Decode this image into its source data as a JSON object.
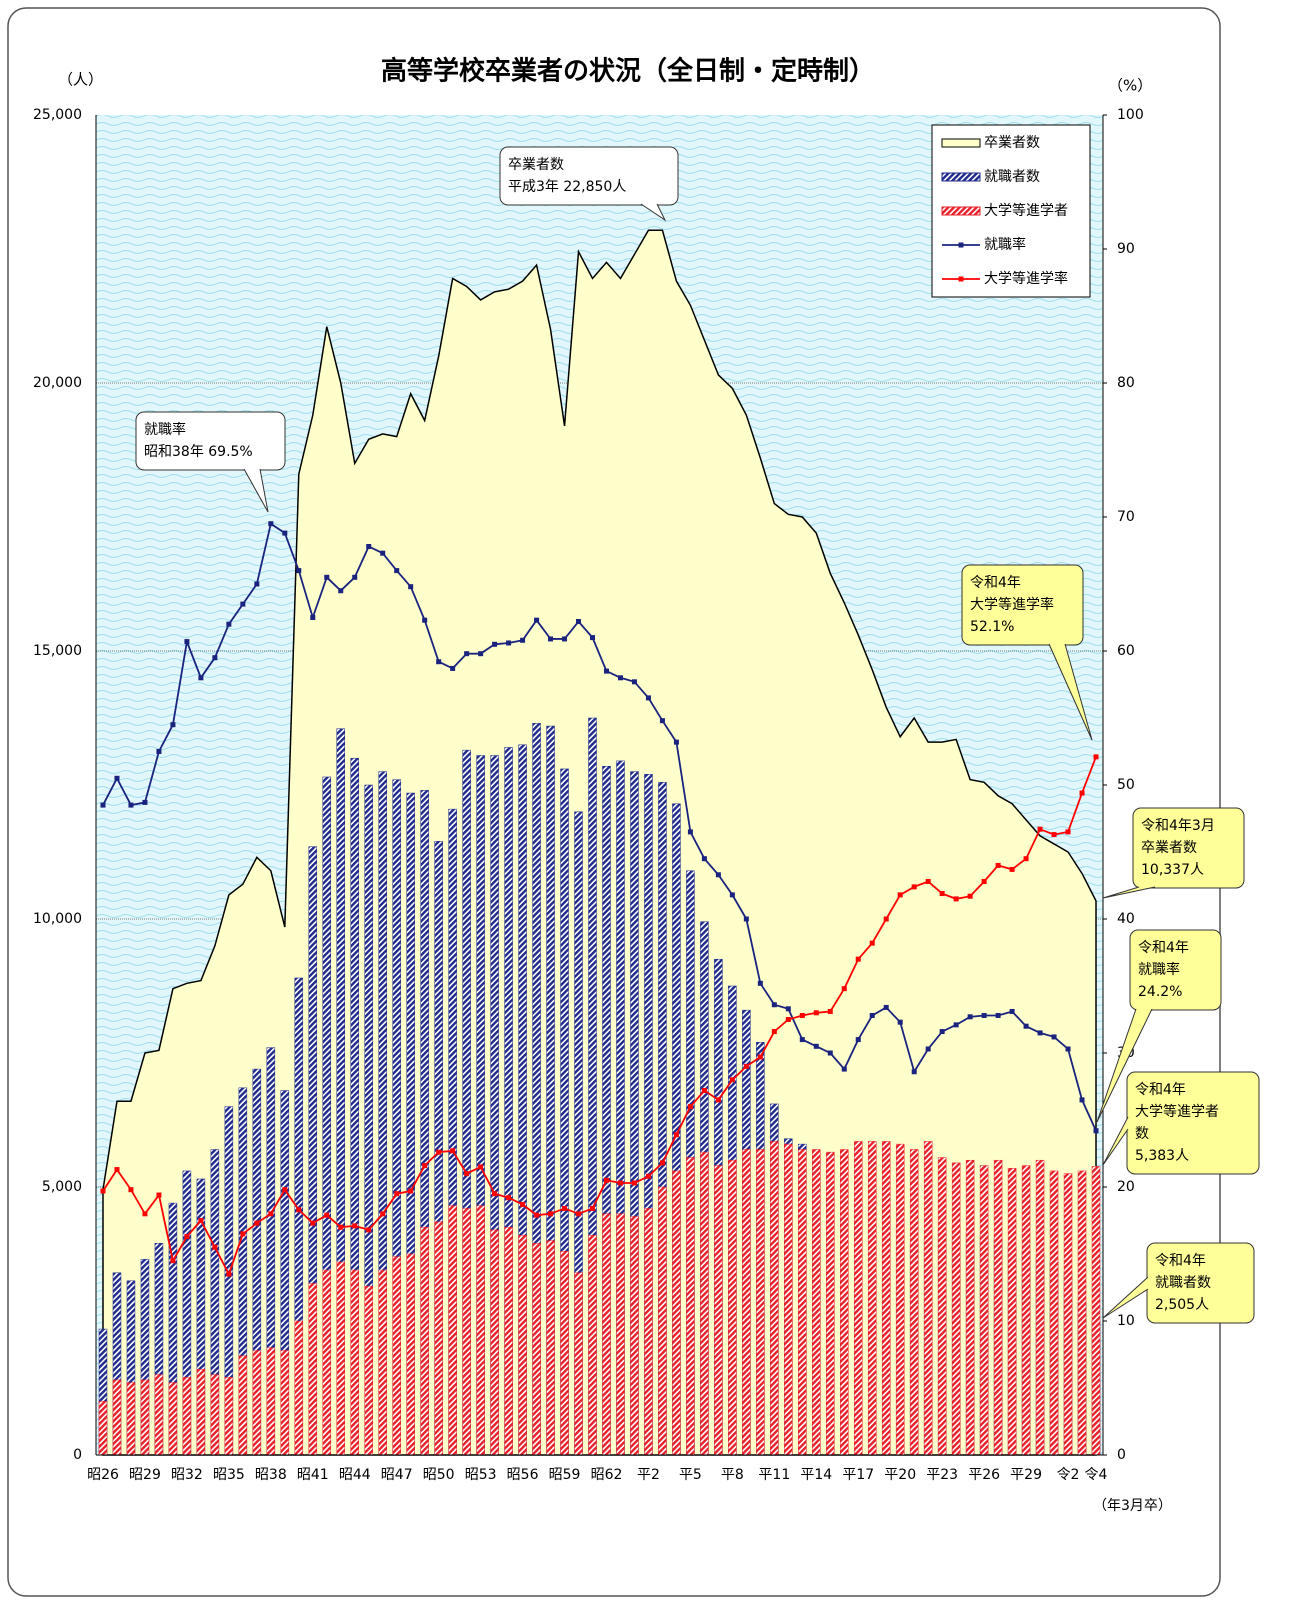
{
  "chart_data": {
    "type": "combo",
    "title": "高等学校卒業者の状況（全日制・定時制）",
    "y_unit": "（人）",
    "y2_unit": "（%）",
    "x_unit": "（年3月卒）",
    "legend": "upper right",
    "categories": [
      "昭26",
      null,
      null,
      "昭29",
      null,
      null,
      "昭32",
      null,
      null,
      "昭35",
      null,
      null,
      "昭38",
      null,
      null,
      "昭41",
      null,
      null,
      "昭44",
      null,
      null,
      "昭47",
      null,
      null,
      "昭50",
      null,
      null,
      "昭53",
      null,
      null,
      "昭56",
      null,
      null,
      "昭59",
      null,
      null,
      "昭62",
      null,
      null,
      "平2",
      null,
      null,
      "平5",
      null,
      null,
      "平8",
      null,
      null,
      "平11",
      null,
      null,
      "平14",
      null,
      null,
      "平17",
      null,
      null,
      "平20",
      null,
      null,
      "平23",
      null,
      null,
      "平26",
      null,
      null,
      "平29",
      null,
      null,
      "令2",
      null,
      "令4"
    ],
    "ylim": [
      0,
      25000
    ],
    "yticks": [
      0,
      {
        "value": 5000,
        "label": "5,000"
      },
      {
        "value": 10000,
        "label": "10,000"
      },
      {
        "value": 15000,
        "label": "15,000"
      },
      {
        "value": 20000,
        "label": "20,000"
      },
      {
        "value": 25000,
        "label": "25,000"
      }
    ],
    "y2lim": [
      0,
      100
    ],
    "y2ticks": [
      0,
      10,
      20,
      30,
      40,
      50,
      60,
      70,
      80,
      90,
      100
    ],
    "grid": true,
    "series": [
      {
        "name": "卒業者数",
        "type": "area",
        "color": "#ffffcc",
        "values": [
          4950,
          6600,
          6600,
          7500,
          7550,
          8700,
          8800,
          8850,
          9500,
          10450,
          10650,
          11150,
          10900,
          9850,
          18300,
          19400,
          21050,
          20000,
          18500,
          18950,
          19050,
          19000,
          19800,
          19300,
          20500,
          21950,
          21800,
          21550,
          21700,
          21750,
          21900,
          22200,
          21000,
          19200,
          22450,
          21950,
          22250,
          21950,
          22400,
          22850,
          22850,
          21900,
          21450,
          20800,
          20150,
          19900,
          19400,
          18600,
          17750,
          17550,
          17500,
          17200,
          16450,
          15900,
          15300,
          14650,
          13950,
          13400,
          13750,
          13300,
          13300,
          13350,
          12600,
          12550,
          12300,
          12150,
          11850,
          11550,
          11400,
          11250,
          10850,
          10337
        ]
      },
      {
        "name": "就職者数",
        "type": "bar",
        "color": "#1f2a8c",
        "values": [
          2350,
          3400,
          3250,
          3650,
          3950,
          4700,
          5300,
          5150,
          5700,
          6500,
          6850,
          7200,
          7600,
          6800,
          8900,
          11350,
          12650,
          13550,
          13000,
          12500,
          12750,
          12600,
          12350,
          12400,
          11450,
          12050,
          13150,
          13050,
          13050,
          13200,
          13250,
          13650,
          13600,
          12800,
          12000,
          13750,
          12850,
          12950,
          12750,
          12700,
          12550,
          12150,
          10900,
          9950,
          9250,
          8750,
          8300,
          7700,
          6550,
          5900,
          5800,
          5550,
          5150,
          4950,
          4600,
          4700,
          4800,
          4300,
          3950,
          4050,
          4200,
          4250,
          4150,
          4100,
          4050,
          3900,
          3800,
          3700,
          3600,
          3400,
          2850,
          2505
        ]
      },
      {
        "name": "大学等進学者",
        "type": "bar",
        "color": "#e8202a",
        "values": [
          1000,
          1400,
          1350,
          1400,
          1500,
          1350,
          1450,
          1600,
          1500,
          1450,
          1850,
          1950,
          2000,
          1950,
          2500,
          3200,
          3450,
          3600,
          3450,
          3150,
          3450,
          3700,
          3750,
          4250,
          4350,
          4650,
          4600,
          4650,
          4200,
          4250,
          4100,
          3950,
          4000,
          3800,
          3400,
          4100,
          4500,
          4500,
          4450,
          4600,
          5000,
          5300,
          5550,
          5650,
          5400,
          5500,
          5700,
          5700,
          5850,
          5800,
          5700,
          5700,
          5650,
          5700,
          5850,
          5850,
          5850,
          5800,
          5700,
          5850,
          5550,
          5450,
          5500,
          5400,
          5500,
          5350,
          5400,
          5500,
          5300,
          5250,
          5300,
          5383
        ]
      },
      {
        "name": "就職率",
        "type": "line",
        "axis": "y2",
        "color": "#1a237e",
        "values": [
          48.5,
          50.5,
          48.5,
          48.7,
          52.5,
          54.5,
          60.7,
          58.0,
          59.5,
          62.0,
          63.5,
          65.0,
          69.5,
          68.8,
          66.0,
          62.5,
          65.5,
          64.5,
          65.5,
          67.8,
          67.3,
          66.0,
          64.8,
          62.3,
          59.2,
          58.7,
          59.8,
          59.8,
          60.5,
          60.6,
          60.8,
          62.3,
          60.9,
          60.9,
          62.2,
          61.0,
          58.5,
          58.0,
          57.7,
          56.5,
          54.8,
          53.2,
          46.5,
          44.5,
          43.3,
          41.8,
          40.0,
          35.2,
          33.6,
          33.3,
          31.0,
          30.5,
          30.0,
          28.8,
          31.0,
          32.8,
          33.4,
          32.3,
          28.6,
          30.3,
          31.6,
          32.1,
          32.7,
          32.8,
          32.8,
          33.1,
          32.0,
          31.5,
          31.2,
          30.3,
          26.5,
          24.2
        ]
      },
      {
        "name": "大学等進学率",
        "type": "line",
        "axis": "y2",
        "color": "#ff0000",
        "values": [
          19.7,
          21.3,
          19.8,
          18.0,
          19.4,
          14.5,
          16.3,
          17.5,
          15.5,
          13.5,
          16.5,
          17.3,
          18.0,
          19.8,
          18.3,
          17.3,
          17.9,
          17.0,
          17.1,
          16.8,
          18.0,
          19.5,
          19.7,
          21.6,
          22.6,
          22.7,
          21.0,
          21.5,
          19.5,
          19.2,
          18.7,
          17.9,
          18.0,
          18.4,
          18.0,
          18.4,
          20.5,
          20.3,
          20.3,
          20.8,
          21.8,
          23.9,
          26.0,
          27.2,
          26.5,
          28.0,
          29.0,
          29.7,
          31.6,
          32.5,
          32.8,
          33.0,
          33.1,
          34.8,
          37.0,
          38.2,
          40.0,
          41.8,
          42.4,
          42.8,
          41.9,
          41.5,
          41.7,
          42.8,
          44.0,
          43.7,
          44.5,
          46.7,
          46.3,
          46.5,
          49.4,
          52.1
        ]
      }
    ],
    "annotations": [
      {
        "lines": [
          "卒業者数",
          "平成3年  22,850人"
        ]
      },
      {
        "lines": [
          "就職率",
          "昭和38年 69.5%"
        ]
      },
      {
        "lines": [
          "令和4年",
          "大学等進学率",
          "52.1%"
        ]
      },
      {
        "lines": [
          "令和4年3月",
          "卒業者数",
          "10,337人"
        ]
      },
      {
        "lines": [
          "令和4年",
          "就職率",
          "24.2%"
        ]
      },
      {
        "lines": [
          "令和4年",
          "大学等進学者",
          "数",
          "5,383人"
        ]
      },
      {
        "lines": [
          "令和4年",
          "就職者数",
          "2,505人"
        ]
      }
    ]
  }
}
